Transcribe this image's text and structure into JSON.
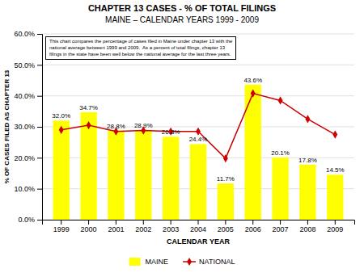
{
  "chart_data": {
    "type": "bar",
    "title": "CHAPTER 13 CASES - % OF TOTAL FILINGS",
    "subtitle": "MAINE – CALENDAR YEARS 1999 - 2009",
    "x_label": "CALENDAR YEAR",
    "y_label": "% OF CASES FILED AS CHAPTER 13",
    "annotation": "This chart compares the percentage of cases filed in Maine under chapter 13 with the\nnational average between 1999 and 2009.  As a percent of total filings, chapter 13\nfilings in the state have been well below the national average for the last three years.",
    "categories": [
      "1999",
      "2000",
      "2001",
      "2002",
      "2003",
      "2004",
      "2005",
      "2006",
      "2007",
      "2008",
      "2009"
    ],
    "series": [
      {
        "name": "MAINE",
        "type": "bar",
        "color": "#FFFF00",
        "values": [
          32.0,
          34.7,
          28.8,
          28.9,
          26.8,
          24.4,
          11.7,
          43.6,
          20.1,
          17.8,
          14.5
        ],
        "value_labels": [
          "32.0%",
          "34.7%",
          "28.8%",
          "28.9%",
          "26.8%",
          "24.4%",
          "11.7%",
          "43.6%",
          "20.1%",
          "17.8%",
          "14.5%"
        ]
      },
      {
        "name": "NATIONAL",
        "type": "line",
        "color": "#CC0000",
        "marker": "diamond",
        "values": [
          29.0,
          30.5,
          28.5,
          28.8,
          28.5,
          28.5,
          19.8,
          40.8,
          38.5,
          32.5,
          27.5
        ]
      }
    ],
    "ylim": [
      0,
      60
    ],
    "yticks": [
      {
        "value": 0,
        "label": "0.0%"
      },
      {
        "value": 10,
        "label": "10.0%"
      },
      {
        "value": 20,
        "label": "20.0%"
      },
      {
        "value": 30,
        "label": "30.0%"
      },
      {
        "value": 40,
        "label": "40.0%"
      },
      {
        "value": 50,
        "label": "50.0%"
      },
      {
        "value": 60,
        "label": "60.0%"
      }
    ],
    "grid": true,
    "data_labels": true,
    "legend": "bottom"
  }
}
